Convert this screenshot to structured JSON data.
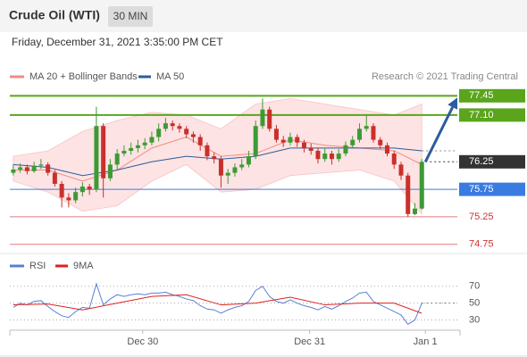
{
  "chart_data": {
    "type": "candlestick",
    "title": "Crude Oil (WTI)",
    "timeframe": "30 MIN",
    "timestamp": "Friday, December 31, 2021 3:35:00 PM CET",
    "source": "Research © 2021 Trading Central",
    "xlim": [
      -0.5,
      60
    ],
    "xticks": [
      {
        "value": 18.7,
        "label": "Dec 30"
      },
      {
        "value": 42.8,
        "label": "Dec 31"
      },
      {
        "value": 59.5,
        "label": "Jan 1"
      }
    ],
    "ylim": [
      74.6,
      77.65
    ],
    "up_color": "#3d9a35",
    "down_color": "#c9302c",
    "candles": [
      [
        76.05,
        76.2,
        76.0,
        76.11
      ],
      [
        76.11,
        76.22,
        76.05,
        76.15
      ],
      [
        76.15,
        76.2,
        76.02,
        76.08
      ],
      [
        76.08,
        76.25,
        76.05,
        76.18
      ],
      [
        76.18,
        76.3,
        76.12,
        76.2
      ],
      [
        76.2,
        76.24,
        76.0,
        76.05
      ],
      [
        76.05,
        76.1,
        75.8,
        75.85
      ],
      [
        75.85,
        75.9,
        75.42,
        75.6
      ],
      [
        75.6,
        75.68,
        75.42,
        75.55
      ],
      [
        75.55,
        75.78,
        75.5,
        75.7
      ],
      [
        75.7,
        75.88,
        75.62,
        75.8
      ],
      [
        75.8,
        75.85,
        75.65,
        75.75
      ],
      [
        75.75,
        77.25,
        75.7,
        76.9
      ],
      [
        76.9,
        76.95,
        75.6,
        75.95
      ],
      [
        75.95,
        76.3,
        75.9,
        76.2
      ],
      [
        76.2,
        76.48,
        76.1,
        76.4
      ],
      [
        76.4,
        76.55,
        76.35,
        76.45
      ],
      [
        76.45,
        76.6,
        76.38,
        76.5
      ],
      [
        76.5,
        76.65,
        76.42,
        76.55
      ],
      [
        76.55,
        76.68,
        76.48,
        76.6
      ],
      [
        76.6,
        76.8,
        76.55,
        76.7
      ],
      [
        76.7,
        76.95,
        76.62,
        76.85
      ],
      [
        76.85,
        77.05,
        76.8,
        76.95
      ],
      [
        76.95,
        77.0,
        76.82,
        76.9
      ],
      [
        76.9,
        76.95,
        76.78,
        76.85
      ],
      [
        76.85,
        76.9,
        76.68,
        76.75
      ],
      [
        76.75,
        76.8,
        76.6,
        76.7
      ],
      [
        76.7,
        76.75,
        76.45,
        76.55
      ],
      [
        76.55,
        76.6,
        76.28,
        76.35
      ],
      [
        76.35,
        76.42,
        76.22,
        76.3
      ],
      [
        76.3,
        76.35,
        75.78,
        76.0
      ],
      [
        76.0,
        76.12,
        75.85,
        76.05
      ],
      [
        76.05,
        76.22,
        75.98,
        76.15
      ],
      [
        76.15,
        76.3,
        76.1,
        76.2
      ],
      [
        76.2,
        76.45,
        76.15,
        76.35
      ],
      [
        76.35,
        77.0,
        76.3,
        76.9
      ],
      [
        76.9,
        77.4,
        76.85,
        77.2
      ],
      [
        77.2,
        77.25,
        76.8,
        76.85
      ],
      [
        76.85,
        76.92,
        76.6,
        76.65
      ],
      [
        76.65,
        76.72,
        76.52,
        76.6
      ],
      [
        76.6,
        76.78,
        76.55,
        76.7
      ],
      [
        76.7,
        76.75,
        76.52,
        76.6
      ],
      [
        76.6,
        76.65,
        76.42,
        76.5
      ],
      [
        76.5,
        76.58,
        76.38,
        76.45
      ],
      [
        76.45,
        76.5,
        76.22,
        76.3
      ],
      [
        76.3,
        76.5,
        76.25,
        76.4
      ],
      [
        76.4,
        76.45,
        76.2,
        76.3
      ],
      [
        76.3,
        76.48,
        76.25,
        76.4
      ],
      [
        76.4,
        76.62,
        76.35,
        76.55
      ],
      [
        76.55,
        76.72,
        76.5,
        76.65
      ],
      [
        76.65,
        76.95,
        76.6,
        76.85
      ],
      [
        76.85,
        77.1,
        76.8,
        76.9
      ],
      [
        76.9,
        76.95,
        76.6,
        76.65
      ],
      [
        76.65,
        76.7,
        76.48,
        76.55
      ],
      [
        76.55,
        76.6,
        76.35,
        76.4
      ],
      [
        76.4,
        76.45,
        76.12,
        76.2
      ],
      [
        76.2,
        76.25,
        75.92,
        76.0
      ],
      [
        76.0,
        76.05,
        75.25,
        75.3
      ],
      [
        75.3,
        75.5,
        75.28,
        75.4
      ],
      [
        75.4,
        76.3,
        75.38,
        76.25
      ]
    ],
    "bollinger": {
      "color": "#fde3e3",
      "x": [
        0,
        5,
        10,
        15,
        20,
        25,
        30,
        35,
        40,
        45,
        50,
        55,
        59
      ],
      "upper": [
        76.35,
        76.45,
        76.8,
        77.0,
        77.15,
        77.1,
        76.85,
        77.3,
        77.4,
        77.3,
        77.2,
        77.1,
        77.3
      ],
      "lower": [
        75.9,
        75.7,
        75.35,
        75.45,
        75.9,
        76.2,
        75.7,
        75.75,
        76.0,
        76.05,
        76.1,
        75.9,
        75.3
      ]
    },
    "ma20": {
      "name": "MA 20 + Bollinger Bands",
      "color": "#f28b82",
      "x": [
        0,
        5,
        10,
        15,
        20,
        25,
        30,
        35,
        40,
        45,
        50,
        55,
        59
      ],
      "values": [
        76.1,
        76.1,
        75.9,
        76.1,
        76.5,
        76.7,
        76.35,
        76.4,
        76.65,
        76.55,
        76.5,
        76.45,
        76.2
      ]
    },
    "ma50": {
      "name": "MA 50",
      "color": "#2c5c9c",
      "x": [
        0,
        5,
        10,
        15,
        20,
        25,
        30,
        35,
        40,
        45,
        50,
        55,
        59
      ],
      "values": [
        76.2,
        76.15,
        76.0,
        76.1,
        76.25,
        76.35,
        76.3,
        76.35,
        76.5,
        76.5,
        76.5,
        76.5,
        76.45
      ]
    },
    "levels": [
      {
        "value": 77.45,
        "color": "#5aa51c",
        "style": "box"
      },
      {
        "value": 77.1,
        "label": "77.10",
        "color": "#5aa51c",
        "style": "box"
      },
      {
        "value": 76.25,
        "color": "#333333",
        "style": "box",
        "line": "dotted"
      },
      {
        "value": 75.75,
        "color": "#3a7be0",
        "style": "box"
      },
      {
        "value": 75.25,
        "color": "#e07a7a",
        "style": "text"
      },
      {
        "value": 74.75,
        "color": "#e07a7a",
        "style": "text"
      }
    ],
    "rsi": {
      "ylim": [
        20,
        92
      ],
      "yticks": [
        30,
        50,
        70
      ],
      "series": [
        {
          "name": "RSI",
          "color": "#5b7fd6",
          "values": [
            45,
            50,
            48,
            52,
            53,
            46,
            40,
            35,
            33,
            40,
            45,
            44,
            73,
            48,
            55,
            60,
            58,
            60,
            61,
            60,
            62,
            62,
            63,
            60,
            58,
            55,
            53,
            47,
            43,
            42,
            38,
            42,
            45,
            47,
            52,
            65,
            70,
            58,
            52,
            50,
            54,
            50,
            47,
            45,
            42,
            46,
            43,
            47,
            52,
            56,
            62,
            63,
            52,
            48,
            44,
            40,
            36,
            25,
            30,
            50
          ]
        },
        {
          "name": "9MA",
          "color": "#e02020",
          "x": [
            0,
            5,
            10,
            15,
            20,
            25,
            30,
            35,
            40,
            45,
            50,
            55,
            59
          ],
          "values": [
            48,
            49,
            42,
            50,
            58,
            60,
            48,
            50,
            57,
            48,
            50,
            50,
            38
          ]
        }
      ]
    }
  }
}
